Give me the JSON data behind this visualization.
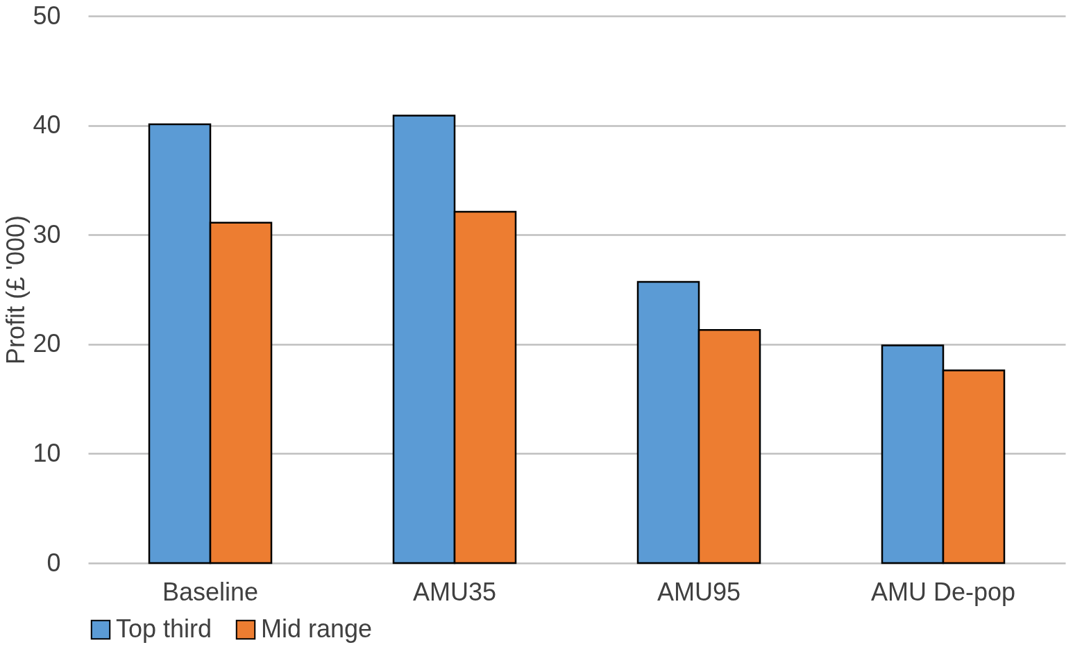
{
  "chart_data": {
    "type": "bar",
    "ylabel": "Profit (£ '000)",
    "categories": [
      "Baseline",
      "AMU35",
      "AMU95",
      "AMU De-pop"
    ],
    "series": [
      {
        "name": "Top third",
        "color": "#5b9bd5",
        "values": [
          40.1,
          40.9,
          25.7,
          19.9
        ]
      },
      {
        "name": "Mid range",
        "color": "#ed7d31",
        "values": [
          31.1,
          32.1,
          21.3,
          17.6
        ]
      }
    ],
    "ylim": [
      0,
      50
    ],
    "yticks": [
      0,
      10,
      20,
      30,
      40,
      50
    ],
    "grid": "y",
    "legend": "bottom"
  }
}
